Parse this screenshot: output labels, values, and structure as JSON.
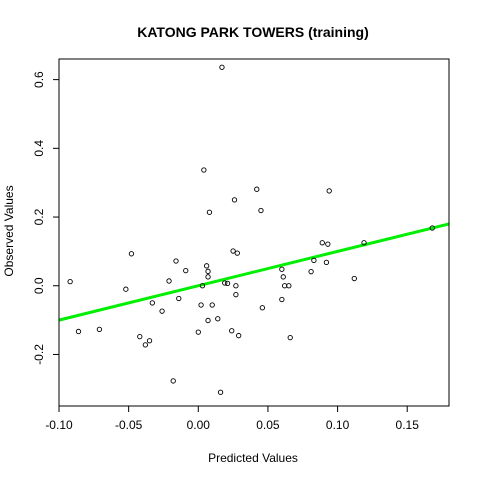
{
  "chart_data": {
    "type": "scatter",
    "title": "KATONG PARK TOWERS (training)",
    "xlabel": "Predicted Values",
    "ylabel": "Observed Values",
    "xlim": [
      -0.1,
      0.18
    ],
    "ylim": [
      -0.35,
      0.66
    ],
    "x_ticks": [
      "-0.10",
      "-0.05",
      "0.00",
      "0.05",
      "0.10",
      "0.15"
    ],
    "y_ticks": [
      "-0.2",
      "0.0",
      "0.2",
      "0.4",
      "0.6"
    ],
    "point_color": "#000000",
    "line_color": "#00ee00",
    "fit_line": {
      "x": [
        -0.1,
        0.18
      ],
      "y": [
        -0.1,
        0.18
      ]
    },
    "points": [
      {
        "x": -0.092,
        "y": 0.012
      },
      {
        "x": -0.086,
        "y": -0.133
      },
      {
        "x": -0.071,
        "y": -0.127
      },
      {
        "x": -0.052,
        "y": -0.01
      },
      {
        "x": -0.048,
        "y": 0.093
      },
      {
        "x": -0.042,
        "y": -0.148
      },
      {
        "x": -0.038,
        "y": -0.172
      },
      {
        "x": -0.035,
        "y": -0.16
      },
      {
        "x": -0.033,
        "y": -0.05
      },
      {
        "x": -0.026,
        "y": -0.074
      },
      {
        "x": -0.021,
        "y": 0.014
      },
      {
        "x": -0.018,
        "y": -0.277
      },
      {
        "x": -0.016,
        "y": 0.072
      },
      {
        "x": -0.014,
        "y": -0.037
      },
      {
        "x": -0.009,
        "y": 0.044
      },
      {
        "x": 0.0,
        "y": -0.135
      },
      {
        "x": 0.002,
        "y": -0.056
      },
      {
        "x": 0.003,
        "y": 0.0
      },
      {
        "x": 0.004,
        "y": 0.337
      },
      {
        "x": 0.006,
        "y": 0.058
      },
      {
        "x": 0.007,
        "y": 0.042
      },
      {
        "x": 0.007,
        "y": 0.026
      },
      {
        "x": 0.007,
        "y": -0.101
      },
      {
        "x": 0.008,
        "y": 0.214
      },
      {
        "x": 0.01,
        "y": -0.056
      },
      {
        "x": 0.014,
        "y": -0.096
      },
      {
        "x": 0.016,
        "y": -0.31
      },
      {
        "x": 0.017,
        "y": 0.636
      },
      {
        "x": 0.019,
        "y": 0.008
      },
      {
        "x": 0.021,
        "y": 0.007
      },
      {
        "x": 0.024,
        "y": -0.131
      },
      {
        "x": 0.025,
        "y": 0.101
      },
      {
        "x": 0.026,
        "y": 0.25
      },
      {
        "x": 0.027,
        "y": 0.0
      },
      {
        "x": 0.027,
        "y": -0.026
      },
      {
        "x": 0.028,
        "y": 0.095
      },
      {
        "x": 0.029,
        "y": -0.145
      },
      {
        "x": 0.042,
        "y": 0.281
      },
      {
        "x": 0.045,
        "y": 0.219
      },
      {
        "x": 0.046,
        "y": -0.064
      },
      {
        "x": 0.06,
        "y": -0.04
      },
      {
        "x": 0.06,
        "y": 0.048
      },
      {
        "x": 0.061,
        "y": 0.026
      },
      {
        "x": 0.062,
        "y": 0.0
      },
      {
        "x": 0.065,
        "y": 0.0
      },
      {
        "x": 0.066,
        "y": -0.151
      },
      {
        "x": 0.081,
        "y": 0.041
      },
      {
        "x": 0.083,
        "y": 0.074
      },
      {
        "x": 0.089,
        "y": 0.125
      },
      {
        "x": 0.092,
        "y": 0.068
      },
      {
        "x": 0.093,
        "y": 0.121
      },
      {
        "x": 0.094,
        "y": 0.276
      },
      {
        "x": 0.112,
        "y": 0.021
      },
      {
        "x": 0.119,
        "y": 0.125
      },
      {
        "x": 0.168,
        "y": 0.168
      }
    ]
  }
}
